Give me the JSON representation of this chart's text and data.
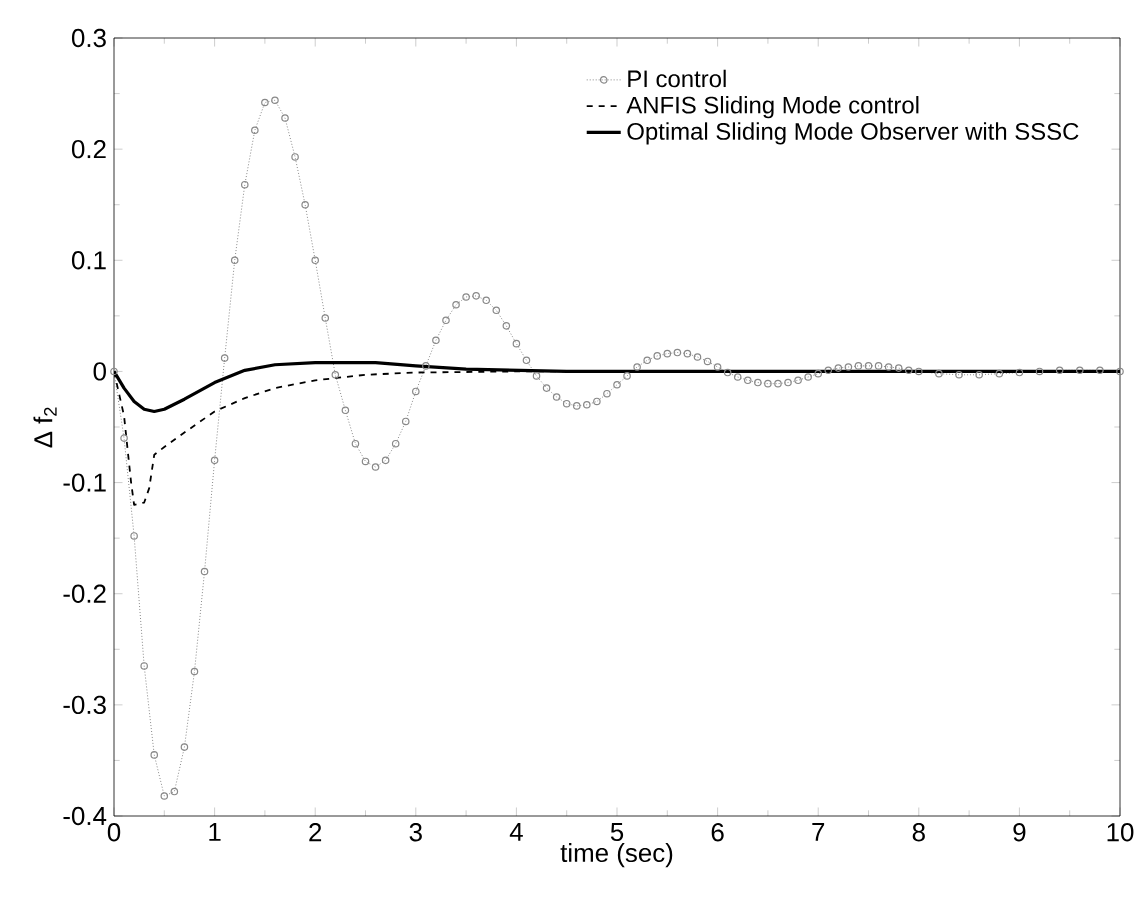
{
  "chart_data": {
    "type": "line",
    "xlabel": "time (sec)",
    "ylabel": "Δ f$_{2}$",
    "xlim": [
      0,
      10
    ],
    "ylim": [
      -0.4,
      0.3
    ],
    "xticks": [
      0,
      1,
      2,
      3,
      4,
      5,
      6,
      7,
      8,
      9,
      10
    ],
    "yticks": [
      -0.4,
      -0.3,
      -0.2,
      -0.1,
      0,
      0.1,
      0.2,
      0.3
    ],
    "legend": "top right",
    "grid": false,
    "series": [
      {
        "name": "PI control",
        "color": "#888888",
        "marker": "circle",
        "line_style": "dotted",
        "x": [
          0,
          0.1,
          0.2,
          0.3,
          0.4,
          0.5,
          0.6,
          0.7,
          0.8,
          0.9,
          1.0,
          1.1,
          1.2,
          1.3,
          1.4,
          1.5,
          1.6,
          1.7,
          1.8,
          1.9,
          2.0,
          2.1,
          2.2,
          2.3,
          2.4,
          2.5,
          2.6,
          2.7,
          2.8,
          2.9,
          3.0,
          3.1,
          3.2,
          3.3,
          3.4,
          3.5,
          3.6,
          3.7,
          3.8,
          3.9,
          4.0,
          4.1,
          4.2,
          4.3,
          4.4,
          4.5,
          4.6,
          4.7,
          4.8,
          4.9,
          5.0,
          5.1,
          5.2,
          5.3,
          5.4,
          5.5,
          5.6,
          5.7,
          5.8,
          5.9,
          6.0,
          6.1,
          6.2,
          6.3,
          6.4,
          6.5,
          6.6,
          6.7,
          6.8,
          6.9,
          7.0,
          7.1,
          7.2,
          7.3,
          7.4,
          7.5,
          7.6,
          7.7,
          7.8,
          7.9,
          8.0,
          8.2,
          8.4,
          8.6,
          8.8,
          9.0,
          9.2,
          9.4,
          9.6,
          9.8,
          10.0
        ],
        "values": [
          0,
          -0.06,
          -0.148,
          -0.265,
          -0.345,
          -0.382,
          -0.378,
          -0.338,
          -0.27,
          -0.18,
          -0.08,
          0.012,
          0.1,
          0.168,
          0.217,
          0.242,
          0.244,
          0.228,
          0.193,
          0.15,
          0.1,
          0.048,
          -0.003,
          -0.035,
          -0.065,
          -0.081,
          -0.086,
          -0.08,
          -0.065,
          -0.045,
          -0.018,
          0.005,
          0.028,
          0.046,
          0.06,
          0.067,
          0.068,
          0.064,
          0.055,
          0.041,
          0.025,
          0.01,
          -0.004,
          -0.015,
          -0.023,
          -0.029,
          -0.031,
          -0.03,
          -0.027,
          -0.02,
          -0.012,
          -0.004,
          0.004,
          0.01,
          0.014,
          0.016,
          0.017,
          0.016,
          0.013,
          0.009,
          0.004,
          -0.001,
          -0.005,
          -0.008,
          -0.01,
          -0.011,
          -0.011,
          -0.01,
          -0.008,
          -0.005,
          -0.002,
          0.001,
          0.003,
          0.004,
          0.005,
          0.005,
          0.005,
          0.004,
          0.003,
          0.001,
          0,
          -0.002,
          -0.003,
          -0.003,
          -0.002,
          -0.001,
          0,
          0.001,
          0.001,
          0.001,
          0
        ]
      },
      {
        "name": "ANFIS Sliding Mode control",
        "color": "#000000",
        "marker": "none",
        "line_style": "dashed",
        "x": [
          0,
          0.1,
          0.17,
          0.2,
          0.3,
          0.35,
          0.4,
          0.5,
          0.7,
          1.0,
          1.3,
          1.6,
          2.0,
          2.5,
          3.0,
          4.0,
          10.0
        ],
        "values": [
          0,
          -0.04,
          -0.1,
          -0.12,
          -0.118,
          -0.105,
          -0.075,
          -0.068,
          -0.055,
          -0.036,
          -0.024,
          -0.015,
          -0.008,
          -0.003,
          -0.001,
          0,
          0
        ]
      },
      {
        "name": "Optimal Sliding Mode Observer with SSSC",
        "color": "#000000",
        "marker": "none",
        "line_style": "solid",
        "x": [
          0,
          0.1,
          0.2,
          0.3,
          0.4,
          0.5,
          0.7,
          1.0,
          1.3,
          1.6,
          2.0,
          2.6,
          3.0,
          3.5,
          4.5,
          10.0
        ],
        "values": [
          0,
          -0.015,
          -0.027,
          -0.034,
          -0.036,
          -0.034,
          -0.025,
          -0.01,
          0.001,
          0.006,
          0.008,
          0.008,
          0.005,
          0.002,
          0,
          0
        ]
      }
    ]
  }
}
